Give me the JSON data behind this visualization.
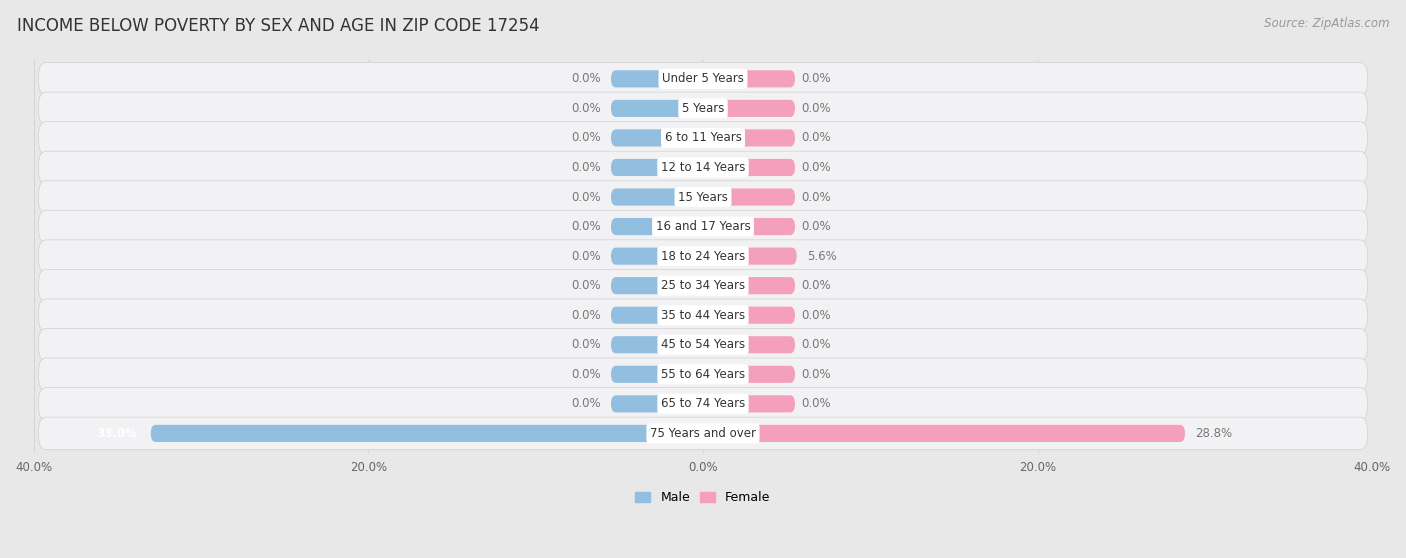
{
  "title": "INCOME BELOW POVERTY BY SEX AND AGE IN ZIP CODE 17254",
  "source": "Source: ZipAtlas.com",
  "categories": [
    "Under 5 Years",
    "5 Years",
    "6 to 11 Years",
    "12 to 14 Years",
    "15 Years",
    "16 and 17 Years",
    "18 to 24 Years",
    "25 to 34 Years",
    "35 to 44 Years",
    "45 to 54 Years",
    "55 to 64 Years",
    "65 to 74 Years",
    "75 Years and over"
  ],
  "male": [
    0.0,
    0.0,
    0.0,
    0.0,
    0.0,
    0.0,
    0.0,
    0.0,
    0.0,
    0.0,
    0.0,
    0.0,
    33.0
  ],
  "female": [
    0.0,
    0.0,
    0.0,
    0.0,
    0.0,
    0.0,
    5.6,
    0.0,
    0.0,
    0.0,
    0.0,
    0.0,
    28.8
  ],
  "male_color": "#92bfdf",
  "female_color": "#f4a0bc",
  "male_label": "Male",
  "female_label": "Female",
  "axis_max": 40.0,
  "bar_height": 0.58,
  "bg_color": "#e8e8e8",
  "row_bg": "#f2f2f4",
  "title_fontsize": 12,
  "source_fontsize": 8.5,
  "label_fontsize": 8.5,
  "tick_fontsize": 8.5,
  "category_fontsize": 8.5,
  "min_bar_width": 5.5
}
